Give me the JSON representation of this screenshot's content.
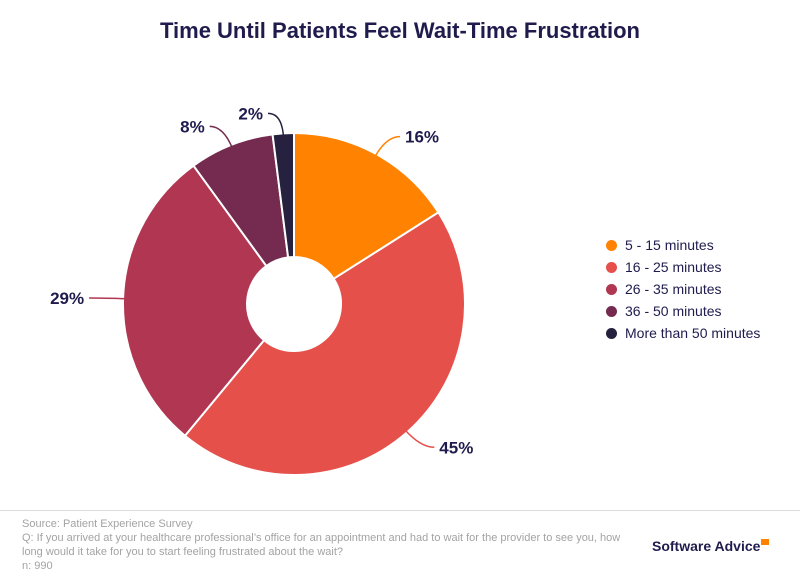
{
  "title": "Time Until Patients Feel Wait-Time Frustration",
  "chart_data": {
    "type": "pie",
    "title": "Time Until Patients Feel Wait-Time Frustration",
    "donut": true,
    "legend_position": "right",
    "categories": [
      "5 - 15 minutes",
      "16 - 25 minutes",
      "26 - 35 minutes",
      "36 - 50 minutes",
      "More than 50 minutes"
    ],
    "values": [
      16,
      45,
      29,
      8,
      2
    ],
    "labels": [
      "16%",
      "45%",
      "29%",
      "8%",
      "2%"
    ],
    "colors": [
      "#ff8200",
      "#e5504a",
      "#b03651",
      "#742b4f",
      "#25213f"
    ]
  },
  "footer": {
    "source": "Source: Patient Experience Survey",
    "question": "Q: If you arrived at your healthcare professional’s office for an appointment and had to wait for the provider to see you, how long would it take for you to start feeling frustrated about the wait?",
    "n": "n: 990"
  },
  "brand": "Software Advice"
}
